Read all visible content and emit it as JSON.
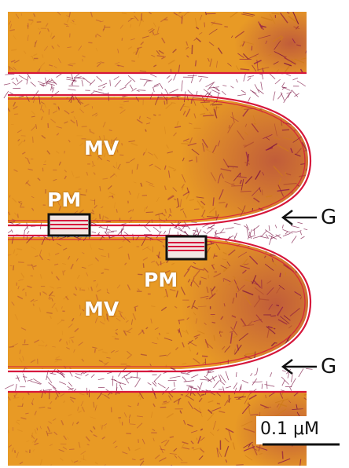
{
  "labels": {
    "mv_top": "MV",
    "mv_bottom": "MV",
    "pm_top": "PM",
    "pm_bottom": "PM",
    "g_top": "G",
    "g_bottom": "G",
    "scale_bar": "0.1 μM"
  },
  "colors": {
    "background": "#ffffff",
    "villus_fill": "#e89a25",
    "villus_fill_dark": "#cf7b1a",
    "membrane": "#d6173c",
    "filament": "#7a1040",
    "box_outline": "#111111",
    "text_light": "#ffffff",
    "text_dark": "#111111"
  }
}
